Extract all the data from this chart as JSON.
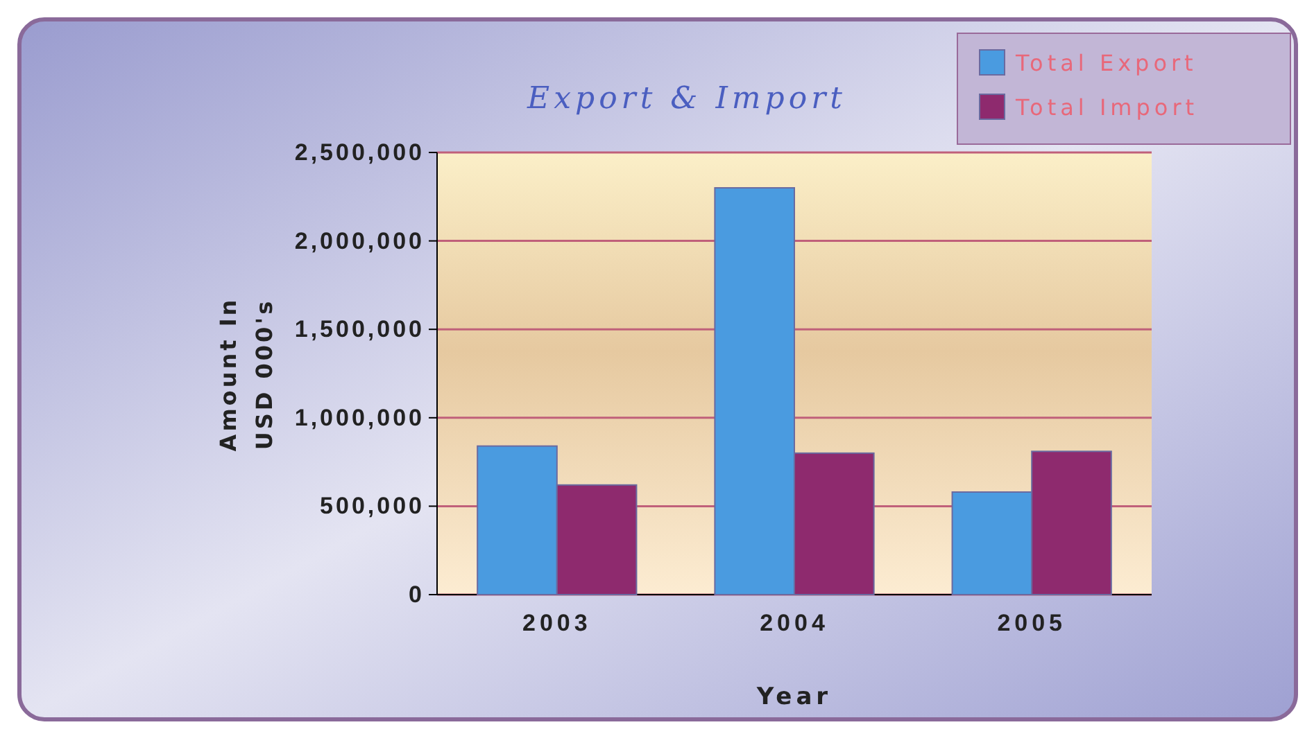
{
  "chart_data": {
    "type": "bar",
    "title": "Export & Import",
    "xlabel": "Year",
    "ylabel": "Amount In USD 000's",
    "categories": [
      "2003",
      "2004",
      "2005"
    ],
    "series": [
      {
        "name": "Total Export",
        "color": "#4a9be0",
        "values": [
          840000,
          2300000,
          580000
        ]
      },
      {
        "name": "Total Import",
        "color": "#8e2a6e",
        "values": [
          620000,
          800000,
          810000
        ]
      }
    ],
    "ylim": [
      0,
      2500000
    ],
    "yticks": [
      {
        "value": 0,
        "label": "0"
      },
      {
        "value": 500000,
        "label": "500,000"
      },
      {
        "value": 1000000,
        "label": "1,000,000"
      },
      {
        "value": 1500000,
        "label": "1,500,000"
      },
      {
        "value": 2000000,
        "label": "2,000,000"
      },
      {
        "value": 2500000,
        "label": "2,500,000"
      }
    ],
    "grid": "y",
    "legend": "top right"
  }
}
